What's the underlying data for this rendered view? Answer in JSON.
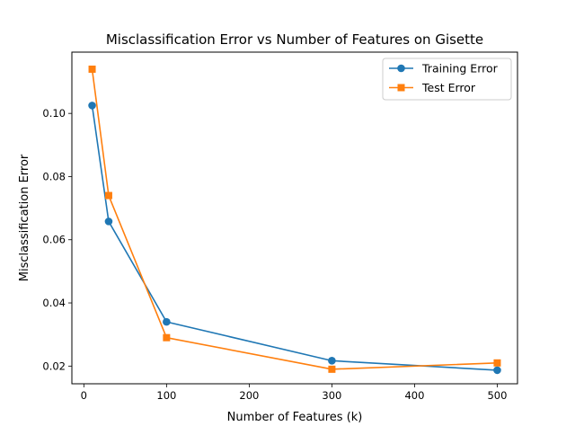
{
  "chart_data": {
    "type": "line",
    "title": "Misclassification Error vs Number of Features on Gisette",
    "xlabel": "Number of Features (k)",
    "ylabel": "Misclassification Error",
    "xlim": [
      -14.5,
      524.5
    ],
    "ylim": [
      0.0144,
      0.1194
    ],
    "xticks": [
      0,
      100,
      200,
      300,
      400,
      500
    ],
    "xtick_labels": [
      "0",
      "100",
      "200",
      "300",
      "400",
      "500"
    ],
    "yticks": [
      0.02,
      0.04,
      0.06,
      0.08,
      0.1
    ],
    "ytick_labels": [
      "0.02",
      "0.04",
      "0.06",
      "0.08",
      "0.10"
    ],
    "grid": false,
    "legend_position": "top-right",
    "series": [
      {
        "name": "Training Error",
        "color": "#1f77b4",
        "marker": "circle",
        "x": [
          10,
          30,
          100,
          300,
          500
        ],
        "y": [
          0.1025,
          0.0658,
          0.034,
          0.0217,
          0.0187
        ]
      },
      {
        "name": "Test Error",
        "color": "#ff7f0e",
        "marker": "square",
        "x": [
          10,
          30,
          100,
          300,
          500
        ],
        "y": [
          0.114,
          0.074,
          0.029,
          0.019,
          0.021
        ]
      }
    ]
  }
}
